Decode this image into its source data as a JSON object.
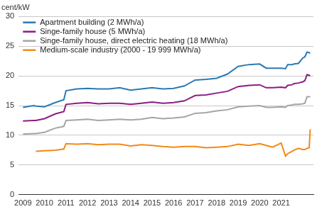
{
  "chart_data": {
    "type": "line",
    "y_label": "cent/kW",
    "x": [
      2009,
      2009.5,
      2009.6,
      2010,
      2010.5,
      2010.9,
      2011,
      2011.5,
      2012,
      2012.5,
      2013,
      2013.5,
      2014,
      2014.5,
      2015,
      2015.5,
      2016,
      2016.5,
      2017,
      2017.5,
      2018,
      2018.5,
      2019,
      2019.5,
      2020,
      2020.3,
      2020.6,
      2021,
      2021.2,
      2021.3,
      2021.5,
      2021.6,
      2021.8,
      2022,
      2022.1,
      2022.2,
      2022.3,
      2022.35
    ],
    "series": [
      {
        "name": "Apartment building (2 MWh/a)",
        "color": "#2a7ab3",
        "values": [
          14.7,
          15.0,
          14.9,
          14.8,
          15.5,
          16.0,
          17.5,
          17.8,
          17.9,
          17.8,
          17.8,
          18.0,
          17.6,
          17.8,
          18.0,
          17.8,
          17.9,
          18.3,
          19.3,
          19.4,
          19.6,
          20.3,
          21.6,
          21.9,
          22.0,
          21.3,
          21.3,
          21.3,
          21.2,
          21.9,
          21.9,
          22.0,
          22.1,
          23.0,
          23.2,
          24.0,
          23.9,
          23.8
        ]
      },
      {
        "name": "Singe-family house (5 MWh/a)",
        "color": "#8c1d82",
        "values": [
          12.4,
          12.5,
          12.5,
          12.8,
          13.6,
          14.0,
          15.2,
          15.4,
          15.5,
          15.3,
          15.4,
          15.4,
          15.2,
          15.4,
          15.6,
          15.4,
          15.5,
          15.8,
          16.7,
          16.8,
          17.1,
          17.4,
          18.2,
          18.4,
          18.5,
          18.0,
          18.0,
          18.1,
          18.0,
          18.4,
          18.5,
          18.7,
          18.8,
          19.0,
          19.2,
          20.2,
          20.1,
          20.0
        ]
      },
      {
        "name": "Singe-family house, direct electric heating (18 MWh/a)",
        "color": "#a5a5a5",
        "values": [
          10.2,
          10.3,
          10.3,
          10.5,
          11.2,
          11.5,
          12.5,
          12.6,
          12.7,
          12.5,
          12.6,
          12.7,
          12.6,
          12.7,
          13.0,
          12.8,
          12.9,
          13.1,
          13.7,
          13.8,
          14.1,
          14.3,
          14.8,
          14.9,
          15.0,
          14.7,
          14.7,
          14.8,
          14.7,
          15.0,
          15.1,
          15.2,
          15.2,
          15.3,
          15.4,
          16.5,
          16.5,
          16.5
        ]
      },
      {
        "name": "Medium-scale industry (2000 - 19 999 MWh/a)",
        "color": "#f28a17",
        "values": [
          null,
          null,
          7.3,
          7.4,
          7.5,
          7.7,
          8.6,
          8.5,
          8.6,
          8.4,
          8.5,
          8.5,
          8.2,
          8.4,
          8.3,
          8.1,
          8.0,
          8.1,
          8.1,
          7.9,
          8.0,
          8.1,
          8.5,
          8.3,
          8.6,
          8.3,
          8.0,
          8.7,
          6.5,
          6.9,
          7.3,
          7.5,
          7.8,
          7.6,
          7.6,
          7.8,
          7.9,
          11.0
        ]
      }
    ],
    "xlim": [
      2008.8,
      2022.5
    ],
    "xticks": [
      2009,
      2010,
      2011,
      2012,
      2013,
      2014,
      2015,
      2016,
      2017,
      2018,
      2019,
      2020,
      2021
    ],
    "ylim": [
      0,
      30
    ],
    "yticks": [
      0,
      5,
      10,
      15,
      20,
      25,
      30
    ],
    "grid": true,
    "legend": "upper left"
  }
}
